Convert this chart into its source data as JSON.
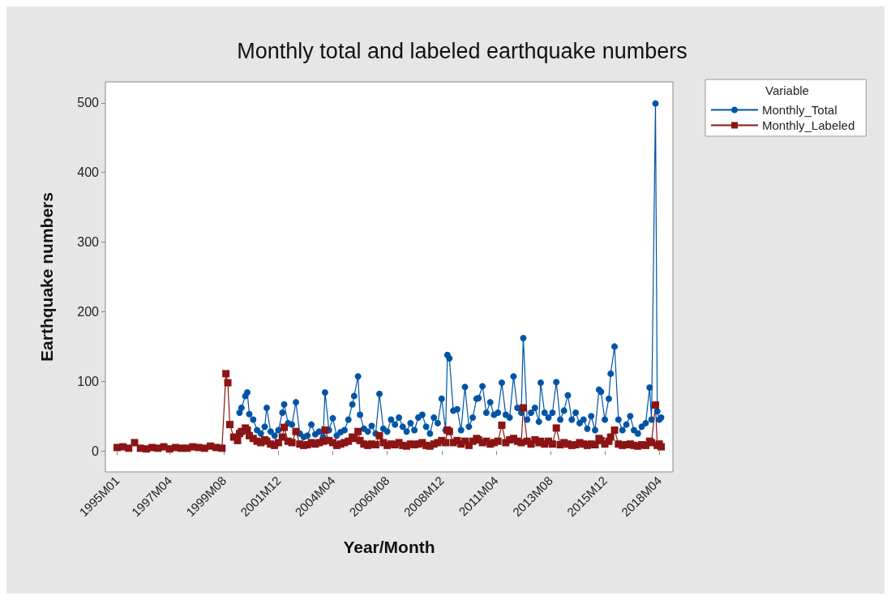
{
  "chart_data": {
    "type": "line",
    "title": "Monthly total and labeled earthquake numbers",
    "xlabel": "Year/Month",
    "ylabel": "Earthquake numbers",
    "legend_title": "Variable",
    "legend": "top right",
    "grid": false,
    "line_style": "solid",
    "x": [
      "1995-01",
      "1995-04",
      "1995-07",
      "1995-10",
      "1996-01",
      "1996-04",
      "1996-07",
      "1996-10",
      "1997-01",
      "1997-04",
      "1997-07",
      "1997-10",
      "1998-01",
      "1998-04",
      "1998-07",
      "1998-10",
      "1999-01",
      "1999-04",
      "1999-07",
      "1999-09",
      "1999-10",
      "1999-11",
      "2000-01",
      "2000-03",
      "2000-04",
      "2000-05",
      "2000-07",
      "2000-08",
      "2000-09",
      "2000-11",
      "2001-01",
      "2001-03",
      "2001-05",
      "2001-06",
      "2001-08",
      "2001-10",
      "2001-12",
      "2002-02",
      "2002-03",
      "2002-05",
      "2002-07",
      "2002-09",
      "2002-11",
      "2003-01",
      "2003-03",
      "2003-05",
      "2003-07",
      "2003-09",
      "2003-11",
      "2003-12",
      "2004-02",
      "2004-04",
      "2004-06",
      "2004-08",
      "2004-10",
      "2004-12",
      "2005-02",
      "2005-03",
      "2005-05",
      "2005-06",
      "2005-08",
      "2005-10",
      "2005-12",
      "2006-02",
      "2006-04",
      "2006-06",
      "2006-08",
      "2006-10",
      "2006-12",
      "2007-02",
      "2007-04",
      "2007-06",
      "2007-08",
      "2007-10",
      "2007-12",
      "2008-02",
      "2008-04",
      "2008-06",
      "2008-08",
      "2008-10",
      "2008-12",
      "2009-02",
      "2009-03",
      "2009-04",
      "2009-06",
      "2009-08",
      "2009-10",
      "2009-12",
      "2010-02",
      "2010-04",
      "2010-06",
      "2010-07",
      "2010-09",
      "2010-11",
      "2011-01",
      "2011-03",
      "2011-05",
      "2011-07",
      "2011-09",
      "2011-11",
      "2012-01",
      "2012-03",
      "2012-05",
      "2012-06",
      "2012-08",
      "2012-10",
      "2012-12",
      "2013-02",
      "2013-03",
      "2013-05",
      "2013-07",
      "2013-09",
      "2013-11",
      "2014-01",
      "2014-03",
      "2014-05",
      "2014-07",
      "2014-09",
      "2014-11",
      "2015-01",
      "2015-03",
      "2015-05",
      "2015-07",
      "2015-09",
      "2015-10",
      "2015-12",
      "2016-02",
      "2016-03",
      "2016-05",
      "2016-07",
      "2016-09",
      "2016-11",
      "2017-01",
      "2017-03",
      "2017-05",
      "2017-07",
      "2017-09",
      "2017-11",
      "2017-12",
      "2018-02",
      "2018-03",
      "2018-04",
      "2018-05"
    ],
    "xlim": [
      "1994-07",
      "2018-11"
    ],
    "xticks": [
      {
        "value": "1995-01",
        "label": "1995M01"
      },
      {
        "value": "1997-04",
        "label": "1997M04"
      },
      {
        "value": "1999-08",
        "label": "1999M08"
      },
      {
        "value": "2001-12",
        "label": "2001M12"
      },
      {
        "value": "2004-04",
        "label": "2004M04"
      },
      {
        "value": "2006-08",
        "label": "2006M08"
      },
      {
        "value": "2008-12",
        "label": "2008M12"
      },
      {
        "value": "2011-04",
        "label": "2011M04"
      },
      {
        "value": "2013-08",
        "label": "2013M08"
      },
      {
        "value": "2015-12",
        "label": "2015M12"
      },
      {
        "value": "2018-04",
        "label": "2018M04"
      }
    ],
    "ylim": [
      -30,
      530
    ],
    "yticks": [
      0,
      100,
      200,
      300,
      400,
      500
    ],
    "series": [
      {
        "name": "Monthly_Total",
        "color": "#0054a6",
        "marker": "circle",
        "values": [
          null,
          null,
          null,
          null,
          null,
          null,
          null,
          null,
          null,
          null,
          null,
          null,
          null,
          null,
          null,
          null,
          null,
          null,
          null,
          null,
          null,
          null,
          null,
          null,
          55,
          62,
          79,
          84,
          53,
          45,
          30,
          25,
          35,
          62,
          28,
          22,
          30,
          55,
          67,
          40,
          38,
          70,
          25,
          20,
          22,
          38,
          24,
          28,
          20,
          84,
          30,
          47,
          22,
          27,
          30,
          45,
          67,
          79,
          107,
          52,
          32,
          28,
          36,
          25,
          82,
          32,
          28,
          45,
          38,
          48,
          35,
          28,
          40,
          30,
          48,
          52,
          35,
          25,
          48,
          40,
          75,
          30,
          138,
          133,
          58,
          60,
          30,
          92,
          35,
          48,
          75,
          76,
          93,
          55,
          70,
          52,
          55,
          98,
          52,
          48,
          107,
          62,
          55,
          162,
          45,
          55,
          62,
          42,
          98,
          55,
          48,
          55,
          99,
          45,
          58,
          80,
          45,
          55,
          40,
          45,
          32,
          50,
          30,
          88,
          85,
          45,
          75,
          111,
          150,
          45,
          30,
          38,
          50,
          30,
          25,
          35,
          40,
          91,
          45,
          499,
          57,
          45,
          48
        ]
      },
      {
        "name": "Monthly_Labeled",
        "color": "#8b1414",
        "marker": "square",
        "values": [
          5,
          6,
          4,
          12,
          4,
          3,
          5,
          4,
          6,
          3,
          5,
          4,
          4,
          6,
          5,
          4,
          7,
          5,
          4,
          111,
          98,
          38,
          20,
          15,
          25,
          28,
          33,
          30,
          22,
          18,
          14,
          12,
          16,
          14,
          10,
          8,
          12,
          20,
          34,
          14,
          12,
          28,
          10,
          8,
          9,
          12,
          10,
          12,
          14,
          30,
          15,
          12,
          8,
          10,
          12,
          14,
          20,
          18,
          28,
          15,
          10,
          8,
          10,
          9,
          22,
          12,
          8,
          10,
          9,
          12,
          8,
          7,
          10,
          9,
          10,
          12,
          8,
          7,
          10,
          12,
          15,
          12,
          30,
          28,
          12,
          15,
          10,
          14,
          8,
          14,
          18,
          16,
          12,
          14,
          10,
          12,
          14,
          37,
          12,
          16,
          18,
          14,
          12,
          62,
          14,
          10,
          16,
          12,
          14,
          10,
          14,
          10,
          33,
          9,
          12,
          10,
          8,
          9,
          12,
          10,
          8,
          10,
          9,
          18,
          15,
          10,
          14,
          20,
          30,
          10,
          8,
          9,
          10,
          8,
          7,
          9,
          8,
          14,
          12,
          66,
          8,
          10,
          6
        ]
      }
    ]
  }
}
